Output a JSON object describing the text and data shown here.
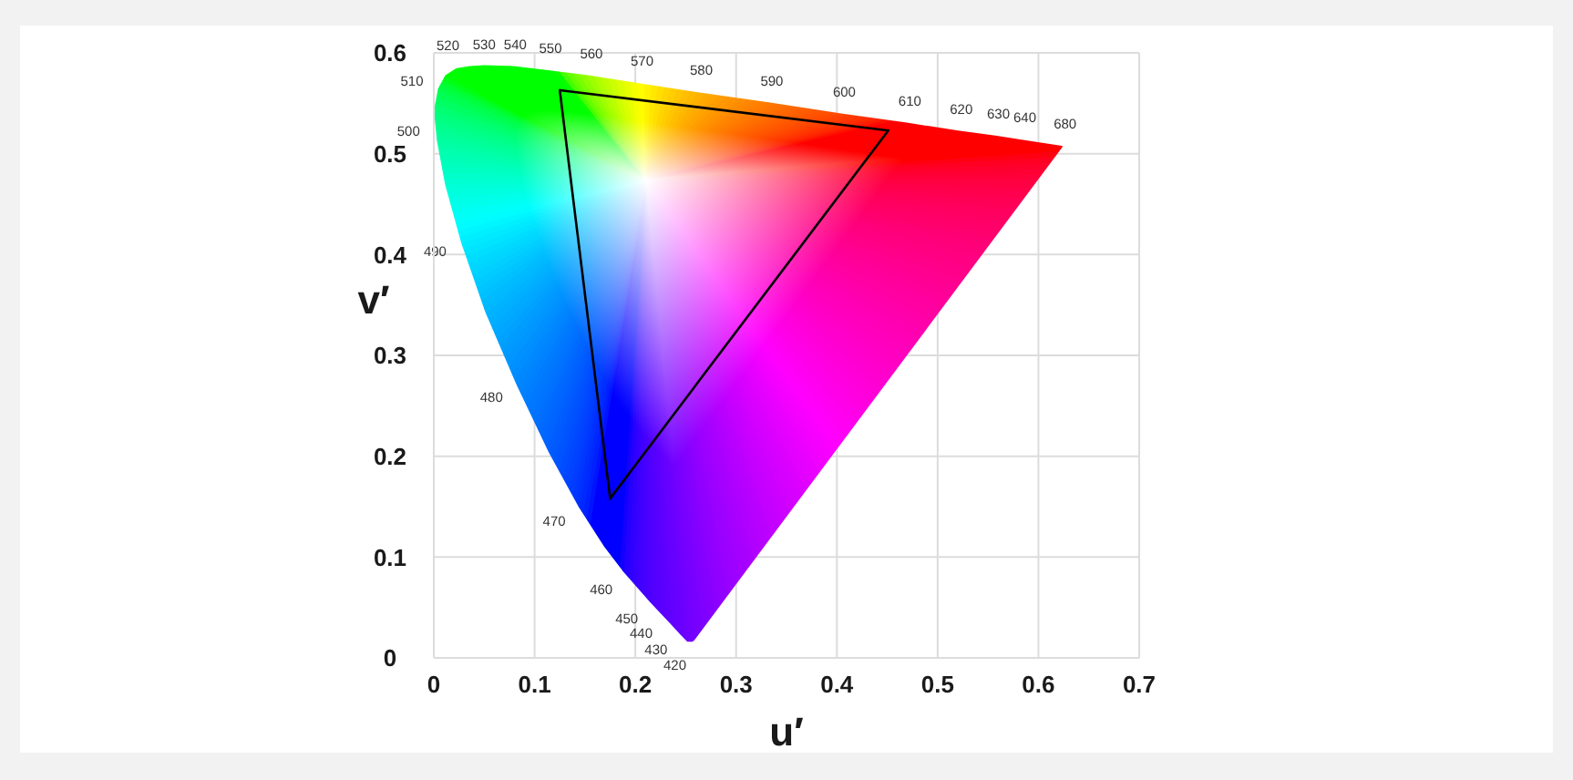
{
  "chart_data": {
    "type": "line",
    "xlabel": "u′",
    "ylabel": "v′",
    "xlim": [
      0,
      0.7
    ],
    "ylim": [
      0,
      0.6
    ],
    "xticks": [
      0,
      0.1,
      0.2,
      0.3,
      0.4,
      0.5,
      0.6,
      0.7
    ],
    "yticks": [
      0,
      0.1,
      0.2,
      0.3,
      0.4,
      0.5,
      0.6
    ],
    "grid": true,
    "marker": "none",
    "series": [
      {
        "type": "area",
        "x": [
          0.257,
          0.252,
          0.246,
          0.235,
          0.216,
          0.188,
          0.169,
          0.144,
          0.115,
          0.083,
          0.052,
          0.028,
          0.012,
          0.004,
          0.001,
          0.005,
          0.012,
          0.023,
          0.036,
          0.05,
          0.079,
          0.113,
          0.153,
          0.203,
          0.262,
          0.332,
          0.404,
          0.469,
          0.52,
          0.557,
          0.583,
          0.623,
          0.257
        ],
        "values": [
          0.017,
          0.017,
          0.023,
          0.035,
          0.055,
          0.087,
          0.112,
          0.151,
          0.204,
          0.271,
          0.343,
          0.412,
          0.47,
          0.513,
          0.543,
          0.564,
          0.577,
          0.584,
          0.586,
          0.587,
          0.586,
          0.582,
          0.577,
          0.569,
          0.56,
          0.55,
          0.539,
          0.53,
          0.522,
          0.517,
          0.513,
          0.507,
          0.017
        ]
      },
      {
        "color": "#000000",
        "x": [
          0.125,
          0.451
        ],
        "values": [
          0.563,
          0.523
        ]
      },
      {
        "color": "#000000",
        "x": [
          0.175,
          0.451
        ],
        "values": [
          0.158,
          0.523
        ]
      },
      {
        "color": "#000000",
        "x": [
          0.125,
          0.175
        ],
        "values": [
          0.563,
          0.158
        ]
      }
    ],
    "annotations": [
      {
        "text": "420",
        "x": 0.252,
        "y": 0.017
      },
      {
        "text": "430",
        "x": 0.246,
        "y": 0.023
      },
      {
        "text": "440",
        "x": 0.235,
        "y": 0.035
      },
      {
        "text": "450",
        "x": 0.216,
        "y": 0.055
      },
      {
        "text": "460",
        "x": 0.188,
        "y": 0.087
      },
      {
        "text": "470",
        "x": 0.144,
        "y": 0.151
      },
      {
        "text": "480",
        "x": 0.083,
        "y": 0.271
      },
      {
        "text": "490",
        "x": 0.028,
        "y": 0.412
      },
      {
        "text": "500",
        "x": 0.004,
        "y": 0.513
      },
      {
        "text": "510",
        "x": 0.005,
        "y": 0.564
      },
      {
        "text": "520",
        "x": 0.023,
        "y": 0.584
      },
      {
        "text": "530",
        "x": 0.05,
        "y": 0.587
      },
      {
        "text": "540",
        "x": 0.079,
        "y": 0.586
      },
      {
        "text": "550",
        "x": 0.113,
        "y": 0.582
      },
      {
        "text": "560",
        "x": 0.153,
        "y": 0.577
      },
      {
        "text": "570",
        "x": 0.203,
        "y": 0.569
      },
      {
        "text": "580",
        "x": 0.262,
        "y": 0.56
      },
      {
        "text": "590",
        "x": 0.332,
        "y": 0.55
      },
      {
        "text": "600",
        "x": 0.404,
        "y": 0.539
      },
      {
        "text": "610",
        "x": 0.469,
        "y": 0.53
      },
      {
        "text": "620",
        "x": 0.52,
        "y": 0.522
      },
      {
        "text": "630",
        "x": 0.557,
        "y": 0.517
      },
      {
        "text": "640",
        "x": 0.583,
        "y": 0.513
      },
      {
        "text": "680",
        "x": 0.623,
        "y": 0.507
      }
    ]
  }
}
